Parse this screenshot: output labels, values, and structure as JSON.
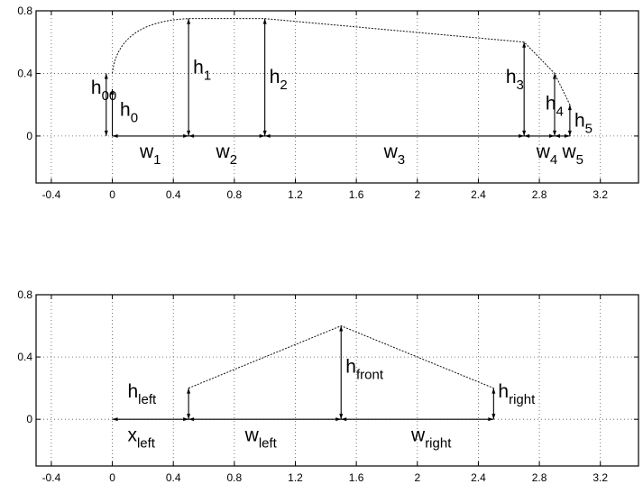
{
  "panels": [
    {
      "id": "top",
      "xlim": [
        -0.5,
        3.45
      ],
      "ylim": [
        -0.3,
        0.8
      ],
      "xticks": [
        -0.4,
        0,
        0.4,
        0.8,
        1.2,
        1.6,
        2,
        2.4,
        2.8,
        3.2
      ],
      "xtick_labels": [
        "-0.4",
        "0",
        "0.4",
        "0.8",
        "1.2",
        "1.6",
        "2",
        "2.4",
        "2.8",
        "3.2"
      ],
      "yticks": [
        0,
        0.4,
        0.8
      ],
      "ytick_labels": [
        "0",
        "0.4",
        "0.8"
      ],
      "profile_points": [
        [
          0,
          0.4
        ],
        [
          0.5,
          0.75
        ],
        [
          1.0,
          0.75
        ],
        [
          2.7,
          0.6
        ],
        [
          2.9,
          0.4
        ],
        [
          3.0,
          0.2
        ]
      ],
      "baseline": [
        0,
        3.0
      ],
      "verticals": [
        {
          "x": 0.5,
          "top": 0.75
        },
        {
          "x": 1.0,
          "top": 0.75
        },
        {
          "x": 2.7,
          "top": 0.6
        },
        {
          "x": 2.9,
          "top": 0.4
        },
        {
          "x": 3.0,
          "top": 0.2
        }
      ],
      "h00_marker": {
        "x": -0.04,
        "top": 0.4
      },
      "h0_marker": {
        "x": 0.0,
        "top": 0.3
      },
      "labels": [
        {
          "main": "h",
          "sub": "00",
          "x": -0.14,
          "y": 0.27
        },
        {
          "main": "h",
          "sub": "0",
          "x": 0.05,
          "y": 0.13
        },
        {
          "main": "h",
          "sub": "1",
          "x": 0.53,
          "y": 0.4
        },
        {
          "main": "h",
          "sub": "2",
          "x": 1.03,
          "y": 0.34
        },
        {
          "main": "h",
          "sub": "3",
          "x": 2.58,
          "y": 0.34
        },
        {
          "main": "h",
          "sub": "4",
          "x": 2.84,
          "y": 0.17
        },
        {
          "main": "h",
          "sub": "5",
          "x": 3.03,
          "y": 0.06
        },
        {
          "main": "w",
          "sub": "1",
          "x": 0.18,
          "y": -0.14
        },
        {
          "main": "w",
          "sub": "2",
          "x": 0.68,
          "y": -0.14
        },
        {
          "main": "w",
          "sub": "3",
          "x": 1.78,
          "y": -0.14
        },
        {
          "main": "w",
          "sub": "4",
          "x": 2.78,
          "y": -0.14
        },
        {
          "main": "w",
          "sub": "5",
          "x": 2.95,
          "y": -0.14
        }
      ]
    },
    {
      "id": "bottom",
      "xlim": [
        -0.5,
        3.45
      ],
      "ylim": [
        -0.3,
        0.8
      ],
      "xticks": [
        -0.4,
        0,
        0.4,
        0.8,
        1.2,
        1.6,
        2,
        2.4,
        2.8,
        3.2
      ],
      "xtick_labels": [
        "-0.4",
        "0",
        "0.4",
        "0.8",
        "1.2",
        "1.6",
        "2",
        "2.4",
        "2.8",
        "3.2"
      ],
      "yticks": [
        0,
        0.4,
        0.8
      ],
      "ytick_labels": [
        "0",
        "0.4",
        "0.8"
      ],
      "profile_points": [
        [
          0.5,
          0.2
        ],
        [
          1.5,
          0.6
        ],
        [
          2.5,
          0.2
        ]
      ],
      "baseline": [
        0,
        2.5
      ],
      "verticals": [
        {
          "x": 0.5,
          "top": 0.2
        },
        {
          "x": 1.5,
          "top": 0.6
        },
        {
          "x": 2.5,
          "top": 0.2
        }
      ],
      "labels": [
        {
          "main": "h",
          "sub": "left",
          "x": 0.1,
          "y": 0.14
        },
        {
          "main": "h",
          "sub": "front",
          "x": 1.53,
          "y": 0.3
        },
        {
          "main": "h",
          "sub": "right",
          "x": 2.53,
          "y": 0.14
        },
        {
          "main": "x",
          "sub": "left",
          "x": 0.1,
          "y": -0.14
        },
        {
          "main": "w",
          "sub": "left",
          "x": 0.87,
          "y": -0.14
        },
        {
          "main": "w",
          "sub": "right",
          "x": 1.96,
          "y": -0.14
        }
      ]
    }
  ]
}
